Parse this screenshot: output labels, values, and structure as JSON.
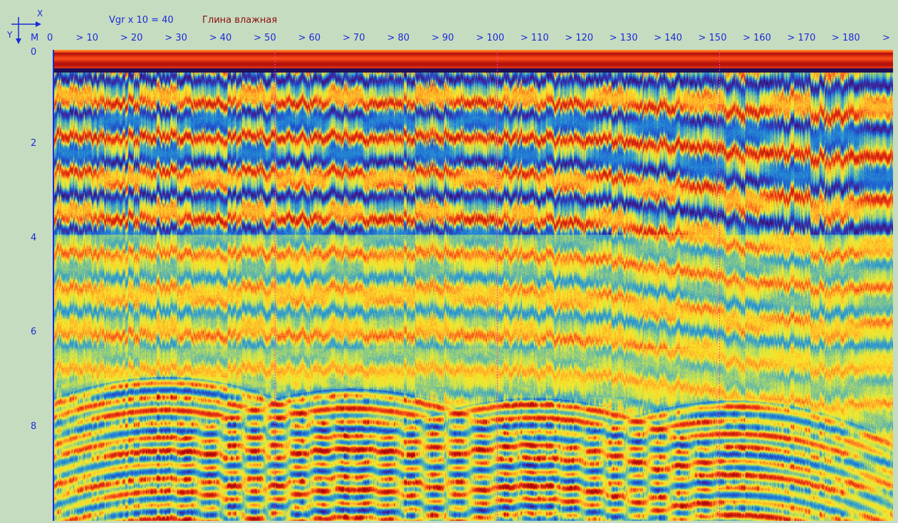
{
  "header": {
    "x_axis_letter": "X",
    "y_axis_letter": "Y",
    "unit": "M",
    "velocity_label": "Vgr x 10 = 40",
    "material_label": "Глина влажная"
  },
  "x_axis": {
    "ticks": [
      "0",
      "> 10",
      "> 20",
      "> 30",
      "> 40",
      "> 50",
      "> 60",
      "> 70",
      "> 80",
      "> 90",
      "> 100",
      "> 110",
      "> 120",
      "> 130",
      "> 140",
      "> 150",
      "> 160",
      "> 170",
      "> 180",
      ">"
    ],
    "tick_values": [
      0,
      10,
      20,
      30,
      40,
      50,
      60,
      70,
      80,
      90,
      100,
      110,
      120,
      130,
      140,
      150,
      160,
      170,
      180,
      189
    ],
    "range": [
      0,
      189
    ],
    "marker_lines": [
      50,
      100,
      150
    ]
  },
  "y_axis": {
    "ticks": [
      "0",
      "2",
      "4",
      "6",
      "8"
    ],
    "tick_values": [
      0,
      2,
      4,
      6,
      8
    ],
    "range": [
      0,
      10
    ]
  },
  "profile": {
    "hyperbola_apexes": [
      {
        "x": 25,
        "depth": 7.0
      },
      {
        "x": 67,
        "depth": 7.25
      },
      {
        "x": 108,
        "depth": 7.45
      },
      {
        "x": 153,
        "depth": 7.5
      }
    ],
    "colors": {
      "background": "#c6dcc0",
      "axis_text": "#1a2bd8",
      "title_text": "#8a1010",
      "marker_line": "#ff3fb0"
    }
  }
}
